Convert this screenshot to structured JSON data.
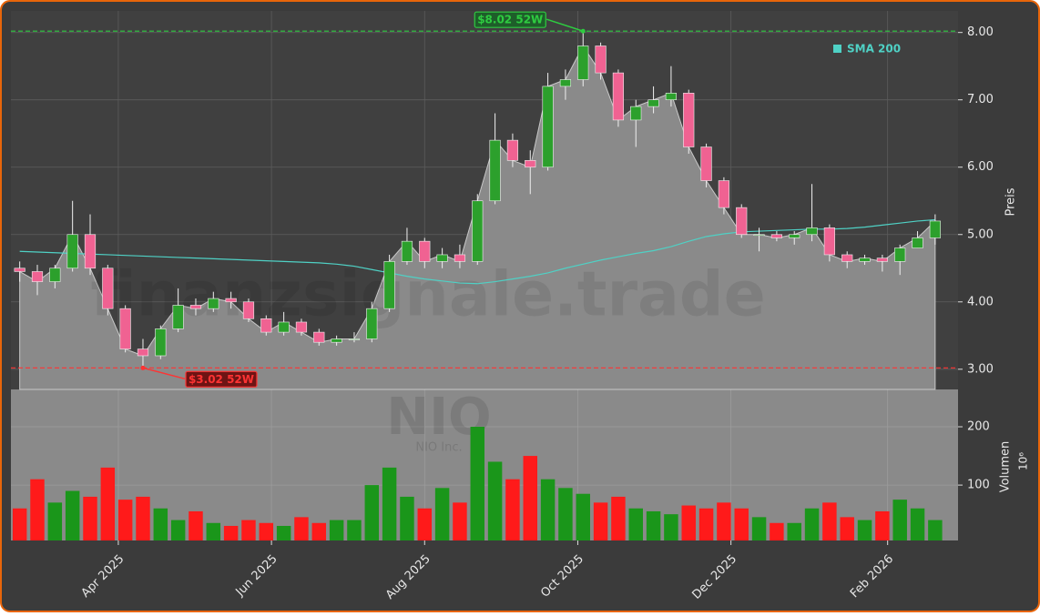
{
  "chart_data": {
    "type": "candlestick",
    "watermark": "finanzsignale.trade",
    "symbol": "NIO",
    "company": "NIO Inc.",
    "ylabel": "Preis",
    "ylim": [
      2.7,
      8.32
    ],
    "yticks": [
      {
        "value": 3,
        "label": "3.00"
      },
      {
        "value": 4,
        "label": "4.00"
      },
      {
        "value": 5,
        "label": "5.00"
      },
      {
        "value": 6,
        "label": "6.00"
      },
      {
        "value": 7,
        "label": "7.00"
      },
      {
        "value": 8,
        "label": "8.00"
      }
    ],
    "xlim": [
      -0.5,
      53.3
    ],
    "xticks": [
      {
        "value": 5.6,
        "label": "Apr 2025"
      },
      {
        "value": 14.3,
        "label": "Jun 2025"
      },
      {
        "value": 23.0,
        "label": "Aug 2025"
      },
      {
        "value": 31.7,
        "label": "Oct 2025"
      },
      {
        "value": 40.4,
        "label": "Dec 2025"
      },
      {
        "value": 49.3,
        "label": "Feb 2026"
      }
    ],
    "grid": true,
    "up_color": "#2ca02c",
    "down_color": "#f06292",
    "open": [
      4.5,
      4.45,
      4.3,
      4.5,
      5.0,
      4.5,
      3.9,
      3.3,
      3.2,
      3.6,
      3.95,
      3.9,
      4.05,
      4.0,
      3.75,
      3.55,
      3.7,
      3.55,
      3.4,
      3.45,
      3.45,
      3.9,
      4.6,
      4.9,
      4.6,
      4.7,
      4.6,
      5.5,
      6.4,
      6.1,
      6.0,
      7.2,
      7.3,
      7.8,
      7.4,
      6.7,
      6.9,
      7.0,
      7.1,
      6.3,
      5.8,
      5.4,
      5.0,
      5.0,
      4.95,
      5.0,
      5.1,
      4.7,
      4.6,
      4.65,
      4.6,
      4.8,
      4.95
    ],
    "high": [
      4.6,
      4.55,
      4.55,
      5.5,
      5.3,
      4.55,
      3.95,
      3.45,
      3.65,
      4.2,
      4.05,
      4.15,
      4.15,
      4.05,
      3.8,
      3.85,
      3.75,
      3.6,
      3.5,
      3.55,
      4.0,
      4.7,
      5.1,
      4.95,
      4.8,
      4.85,
      5.6,
      6.8,
      6.5,
      6.25,
      7.4,
      7.45,
      8.02,
      7.85,
      7.45,
      7.0,
      7.2,
      7.5,
      7.15,
      6.35,
      5.85,
      5.45,
      5.1,
      5.05,
      5.05,
      5.75,
      5.15,
      4.75,
      4.7,
      4.7,
      4.85,
      5.05,
      5.3
    ],
    "low": [
      4.3,
      4.1,
      4.2,
      4.45,
      4.4,
      3.8,
      3.25,
      3.02,
      3.15,
      3.55,
      3.8,
      3.85,
      3.9,
      3.7,
      3.5,
      3.5,
      3.5,
      3.35,
      3.35,
      3.4,
      3.4,
      3.85,
      4.55,
      4.5,
      4.5,
      4.5,
      4.55,
      5.45,
      6.0,
      5.6,
      5.95,
      7.0,
      7.2,
      7.3,
      6.6,
      6.3,
      6.8,
      6.9,
      6.2,
      5.7,
      5.3,
      4.95,
      4.75,
      4.9,
      4.85,
      4.9,
      4.6,
      4.5,
      4.55,
      4.45,
      4.4,
      4.8,
      4.85
    ],
    "close": [
      4.45,
      4.3,
      4.5,
      5.0,
      4.5,
      3.9,
      3.3,
      3.2,
      3.6,
      3.95,
      3.9,
      4.05,
      4.0,
      3.75,
      3.55,
      3.7,
      3.55,
      3.4,
      3.45,
      3.45,
      3.9,
      4.6,
      4.9,
      4.6,
      4.7,
      4.6,
      5.5,
      6.4,
      6.1,
      6.0,
      7.2,
      7.3,
      7.8,
      7.4,
      6.7,
      6.9,
      7.0,
      7.1,
      6.3,
      5.8,
      5.4,
      5.0,
      5.0,
      4.95,
      5.0,
      5.1,
      4.7,
      4.6,
      4.65,
      4.6,
      4.8,
      4.95,
      5.2
    ],
    "series": [
      {
        "name": "SMA 200",
        "color": "#4fd1c5",
        "values": [
          4.75,
          4.74,
          4.73,
          4.72,
          4.71,
          4.7,
          4.69,
          4.68,
          4.67,
          4.66,
          4.65,
          4.64,
          4.63,
          4.62,
          4.61,
          4.6,
          4.59,
          4.58,
          4.56,
          4.53,
          4.48,
          4.43,
          4.38,
          4.34,
          4.31,
          4.28,
          4.27,
          4.3,
          4.34,
          4.38,
          4.43,
          4.5,
          4.56,
          4.62,
          4.67,
          4.72,
          4.76,
          4.82,
          4.9,
          4.97,
          5.01,
          5.04,
          5.05,
          5.06,
          5.07,
          5.08,
          5.08,
          5.09,
          5.11,
          5.14,
          5.17,
          5.2,
          5.22
        ]
      }
    ],
    "annotations": [
      {
        "label": "$8.02 52W",
        "value": 8.02,
        "color": "#2ecc40"
      },
      {
        "label": "$3.02 52W",
        "value": 3.02,
        "color": "#ff3333"
      }
    ],
    "volume": {
      "ylabel": "Volumen",
      "offset_label": "10⁶",
      "ylim": [
        5,
        264
      ],
      "yticks": [
        100,
        200
      ],
      "up_color": "#1a961a",
      "down_color": "#ff1a1a",
      "values": [
        60,
        110,
        70,
        90,
        80,
        130,
        75,
        80,
        60,
        40,
        55,
        35,
        30,
        40,
        35,
        30,
        45,
        35,
        40,
        40,
        100,
        130,
        80,
        60,
        95,
        70,
        200,
        140,
        110,
        150,
        110,
        95,
        85,
        70,
        80,
        60,
        55,
        50,
        65,
        60,
        70,
        60,
        45,
        35,
        35,
        60,
        70,
        45,
        40,
        55,
        75,
        60,
        40
      ]
    }
  }
}
